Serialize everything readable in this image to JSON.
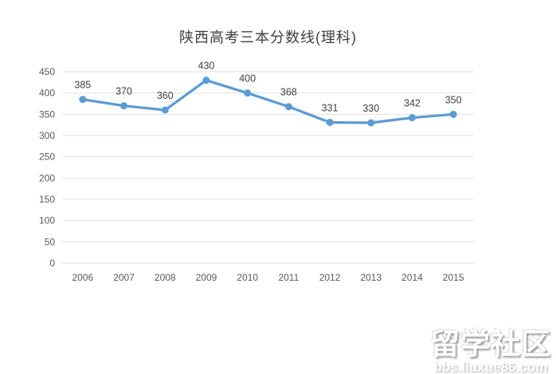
{
  "title": "陕西高考三本分数线(理科)",
  "watermark": {
    "brand": "留学社区",
    "url": "bbs.liuxue86.com"
  },
  "colors": {
    "line": "#5B9BD5",
    "marker": "#5B9BD5",
    "gridline": "#E2E2E2",
    "axis_text": "#595959",
    "data_label_text": "#404040",
    "title_text": "#404040",
    "background": "#FFFFFF"
  },
  "chart_data": {
    "type": "line",
    "title": "陕西高考三本分数线(理科)",
    "categories": [
      "2006",
      "2007",
      "2008",
      "2009",
      "2010",
      "2011",
      "2012",
      "2013",
      "2014",
      "2015"
    ],
    "values": [
      385,
      370,
      360,
      430,
      400,
      368,
      331,
      330,
      342,
      350
    ],
    "series_name": "三本分数线(理科)",
    "xlabel": "",
    "ylabel": "",
    "ylim": [
      0,
      450
    ],
    "ytick_step": 50,
    "yticks": [
      0,
      50,
      100,
      150,
      200,
      250,
      300,
      350,
      400,
      450
    ],
    "grid": true,
    "legend": false,
    "data_labels_shown": true,
    "marker": "circle"
  }
}
